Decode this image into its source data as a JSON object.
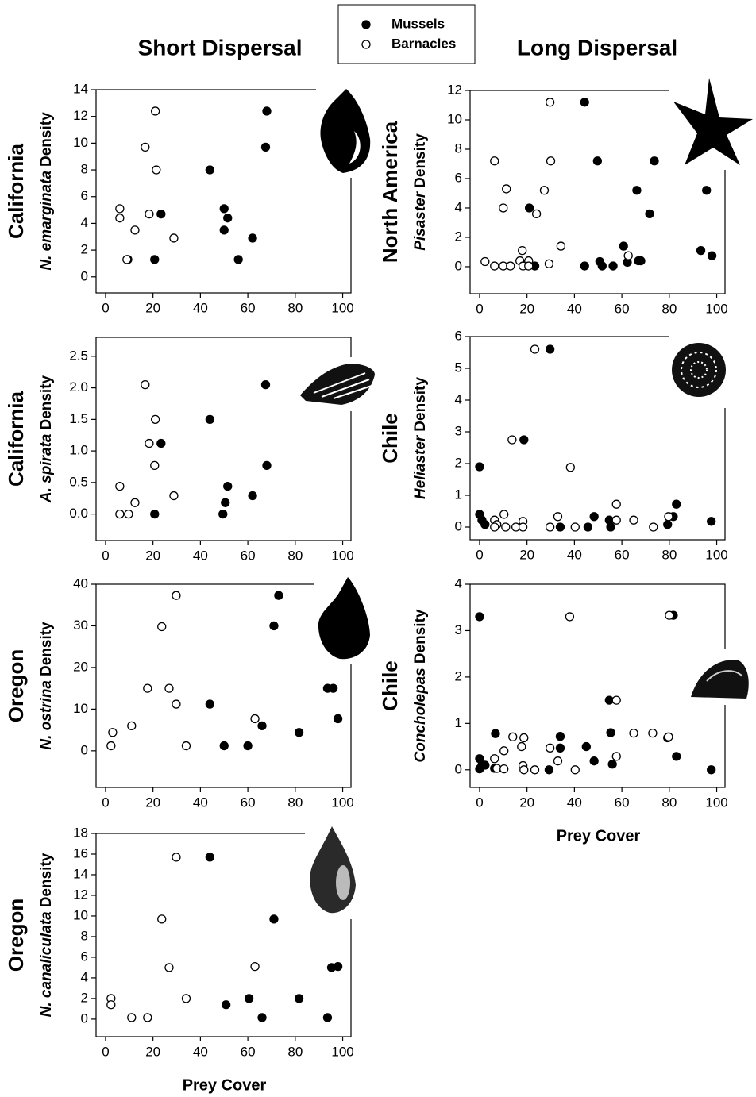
{
  "headings": [
    "Short Dispersal",
    "Long Dispersal"
  ],
  "legend": [
    {
      "name": "Mussels",
      "color": "#000000"
    },
    {
      "name": "Barnacles",
      "color": "#ffffff"
    }
  ],
  "chart_data": [
    {
      "type": "scatter",
      "region": "California",
      "species": "N. emarginata",
      "ylabel": "Density",
      "xlim": [
        -4,
        103.5
      ],
      "xticks": [
        0,
        20,
        40,
        60,
        80,
        100
      ],
      "ylim": [
        -1.2,
        14
      ],
      "yticks": [
        0,
        2,
        4,
        6,
        8,
        10,
        12,
        14
      ],
      "series": [
        {
          "x": [
            68,
            67.5,
            44,
            23.4,
            50,
            51.5,
            50,
            62,
            56,
            20.7
          ],
          "values": [
            12.4,
            9.7,
            8.0,
            4.7,
            5.1,
            4.4,
            3.5,
            2.9,
            1.3,
            1.3
          ]
        },
        {
          "x": [
            21,
            16.7,
            21.4,
            6,
            6,
            18.4,
            12.4,
            28.8,
            9.4,
            9
          ],
          "values": [
            12.4,
            9.7,
            8.0,
            5.1,
            4.4,
            4.7,
            3.5,
            2.9,
            1.3,
            1.3
          ]
        }
      ]
    },
    {
      "type": "scatter",
      "region": "California",
      "species": "A. spirata",
      "ylabel": "Density",
      "xlim": [
        -4,
        103.5
      ],
      "xticks": [
        0,
        20,
        40,
        60,
        80,
        100
      ],
      "ylim": [
        -0.42,
        2.8
      ],
      "yticks": [
        {
          "value": 0,
          "label": "0.0"
        },
        0.5,
        {
          "value": 1,
          "label": "1.0"
        },
        1.5,
        {
          "value": 2,
          "label": "2.0"
        },
        2.5
      ],
      "series": [
        {
          "x": [
            67.5,
            44,
            23.4,
            68,
            51.5,
            50.5,
            62,
            20.7,
            49.5
          ],
          "values": [
            2.05,
            1.5,
            1.12,
            0.77,
            0.44,
            0.18,
            0.29,
            0,
            0
          ]
        },
        {
          "x": [
            16.7,
            21,
            18.4,
            20.7,
            6,
            28.8,
            12.4,
            6,
            9.7
          ],
          "values": [
            2.05,
            1.5,
            1.12,
            0.77,
            0.44,
            0.29,
            0.18,
            0,
            0
          ]
        }
      ]
    },
    {
      "type": "scatter",
      "region": "Oregon",
      "species": "N. ostrina",
      "ylabel": "Density",
      "xlim": [
        -4,
        103.5
      ],
      "xticks": [
        0,
        20,
        40,
        60,
        80,
        100
      ],
      "ylim": [
        -8.8,
        40
      ],
      "yticks": [
        0,
        10,
        20,
        30,
        40
      ],
      "series": [
        {
          "x": [
            73,
            71,
            44,
            50,
            60,
            66,
            81.6,
            93.6,
            96,
            98
          ],
          "values": [
            37.3,
            30,
            11.2,
            1.2,
            1.2,
            6,
            4.4,
            15,
            15,
            7.7
          ]
        },
        {
          "x": [
            29.8,
            23.7,
            17.7,
            26.8,
            29.8,
            11,
            3,
            2.3,
            34,
            63
          ],
          "values": [
            37.3,
            29.8,
            15,
            15,
            11.2,
            6,
            4.4,
            1.2,
            1.2,
            7.7
          ]
        }
      ]
    },
    {
      "type": "scatter",
      "region": "Oregon",
      "species": "N. canaliculata",
      "ylabel": "Density",
      "xlabel": "Prey Cover",
      "xlim": [
        -4,
        103.5
      ],
      "xticks": [
        0,
        20,
        40,
        60,
        80,
        100
      ],
      "ylim": [
        -1.7,
        18
      ],
      "yticks": [
        0,
        2,
        4,
        6,
        8,
        10,
        12,
        14,
        16,
        18
      ],
      "series": [
        {
          "x": [
            44,
            71,
            95.3,
            98,
            50.8,
            60.5,
            66,
            81.6,
            93.6
          ],
          "values": [
            15.7,
            9.7,
            5,
            5.1,
            1.4,
            2,
            0.15,
            2,
            0.15
          ]
        },
        {
          "x": [
            29.8,
            23.7,
            26.8,
            63,
            2.3,
            2.3,
            34,
            11,
            17.7
          ],
          "values": [
            15.7,
            9.7,
            5,
            5.1,
            2,
            1.4,
            2,
            0.15,
            0.15
          ]
        }
      ]
    },
    {
      "type": "scatter",
      "region": "North America",
      "species": "Pisaster",
      "ylabel": "Density",
      "xlim": [
        -4,
        103.5
      ],
      "xticks": [
        0,
        20,
        40,
        60,
        80,
        100
      ],
      "ylim": [
        -1.84,
        12
      ],
      "yticks": [
        0,
        2,
        4,
        6,
        8,
        10,
        12
      ],
      "series": [
        {
          "x": [
            44.3,
            49.7,
            73.7,
            21,
            66.3,
            95.7,
            71.7,
            93.3,
            98,
            60.7,
            62.3,
            50.7,
            67,
            68,
            23.3,
            44.3,
            51.7,
            56.3
          ],
          "values": [
            11.2,
            7.2,
            7.2,
            4,
            5.2,
            5.2,
            3.6,
            1.1,
            0.75,
            1.4,
            0.3,
            0.35,
            0.4,
            0.4,
            0.05,
            0.05,
            0.05,
            0.05
          ]
        },
        {
          "x": [
            29.7,
            6.3,
            30,
            11.3,
            27.3,
            10,
            24,
            34.3,
            18,
            62.7,
            2.3,
            17,
            20.7,
            29.3,
            6.3,
            10,
            13,
            18.3,
            20.7
          ],
          "values": [
            11.2,
            7.2,
            7.2,
            5.3,
            5.2,
            4,
            3.6,
            1.4,
            1.1,
            0.75,
            0.35,
            0.4,
            0.4,
            0.2,
            0.05,
            0.05,
            0.05,
            0.05,
            0.05
          ]
        }
      ]
    },
    {
      "type": "scatter",
      "region": "Chile",
      "species": "Heliaster",
      "ylabel": "Density",
      "xlim": [
        -4,
        103.5
      ],
      "xticks": [
        0,
        20,
        40,
        60,
        80,
        100
      ],
      "ylim": [
        -0.4,
        6
      ],
      "yticks": [
        0,
        1,
        2,
        3,
        4,
        5,
        6
      ],
      "series": [
        {
          "x": [
            29.7,
            18.7,
            0,
            0,
            1,
            2.3,
            34,
            45.7,
            48.3,
            54.7,
            55.3,
            79.3,
            81.7,
            83,
            97.7
          ],
          "values": [
            5.6,
            2.75,
            1.9,
            0.4,
            0.22,
            0.08,
            0,
            0,
            0.33,
            0.22,
            0,
            0.08,
            0.33,
            0.72,
            0.18
          ]
        },
        {
          "x": [
            23.3,
            13.7,
            38.3,
            6.3,
            7.3,
            10.3,
            6.3,
            11,
            15.3,
            18.3,
            18.3,
            29.7,
            33,
            40.3,
            57.7,
            57.7,
            65,
            73.3,
            79.7
          ],
          "values": [
            5.6,
            2.75,
            1.88,
            0.22,
            0.08,
            0.4,
            0,
            0,
            0,
            0.18,
            0,
            0,
            0.33,
            0,
            0.72,
            0.22,
            0.22,
            0,
            0.33
          ]
        }
      ]
    },
    {
      "type": "scatter",
      "region": "Chile",
      "species": "Concholepas",
      "ylabel": "Density",
      "xlabel": "Prey Cover",
      "xlim": [
        -4,
        103.5
      ],
      "xticks": [
        0,
        20,
        40,
        60,
        80,
        100
      ],
      "ylim": [
        -0.38,
        4
      ],
      "yticks": [
        0,
        1,
        2,
        3,
        4
      ],
      "series": [
        {
          "x": [
            0,
            81.7,
            54.7,
            55.3,
            6.7,
            34,
            34,
            45,
            48.3,
            56,
            79.3,
            83,
            97.7,
            0,
            1,
            2.3,
            0,
            29.3,
            6.3
          ],
          "values": [
            3.3,
            3.33,
            1.5,
            0.8,
            0.78,
            0.72,
            0.47,
            0.5,
            0.19,
            0.12,
            0.69,
            0.29,
            0,
            0.24,
            0.1,
            0.1,
            0.02,
            0,
            0.03
          ]
        },
        {
          "x": [
            80,
            38,
            57.7,
            14,
            18.7,
            17.7,
            10.3,
            29.7,
            33,
            6.3,
            7.3,
            10.3,
            18.3,
            18.7,
            23.3,
            40.3,
            57.7,
            65,
            73,
            79.7
          ],
          "values": [
            3.33,
            3.3,
            1.5,
            0.71,
            0.69,
            0.5,
            0.41,
            0.47,
            0.19,
            0.24,
            0.03,
            0.02,
            0.09,
            0,
            0,
            0,
            0.29,
            0.79,
            0.79,
            0.71
          ]
        }
      ]
    }
  ]
}
